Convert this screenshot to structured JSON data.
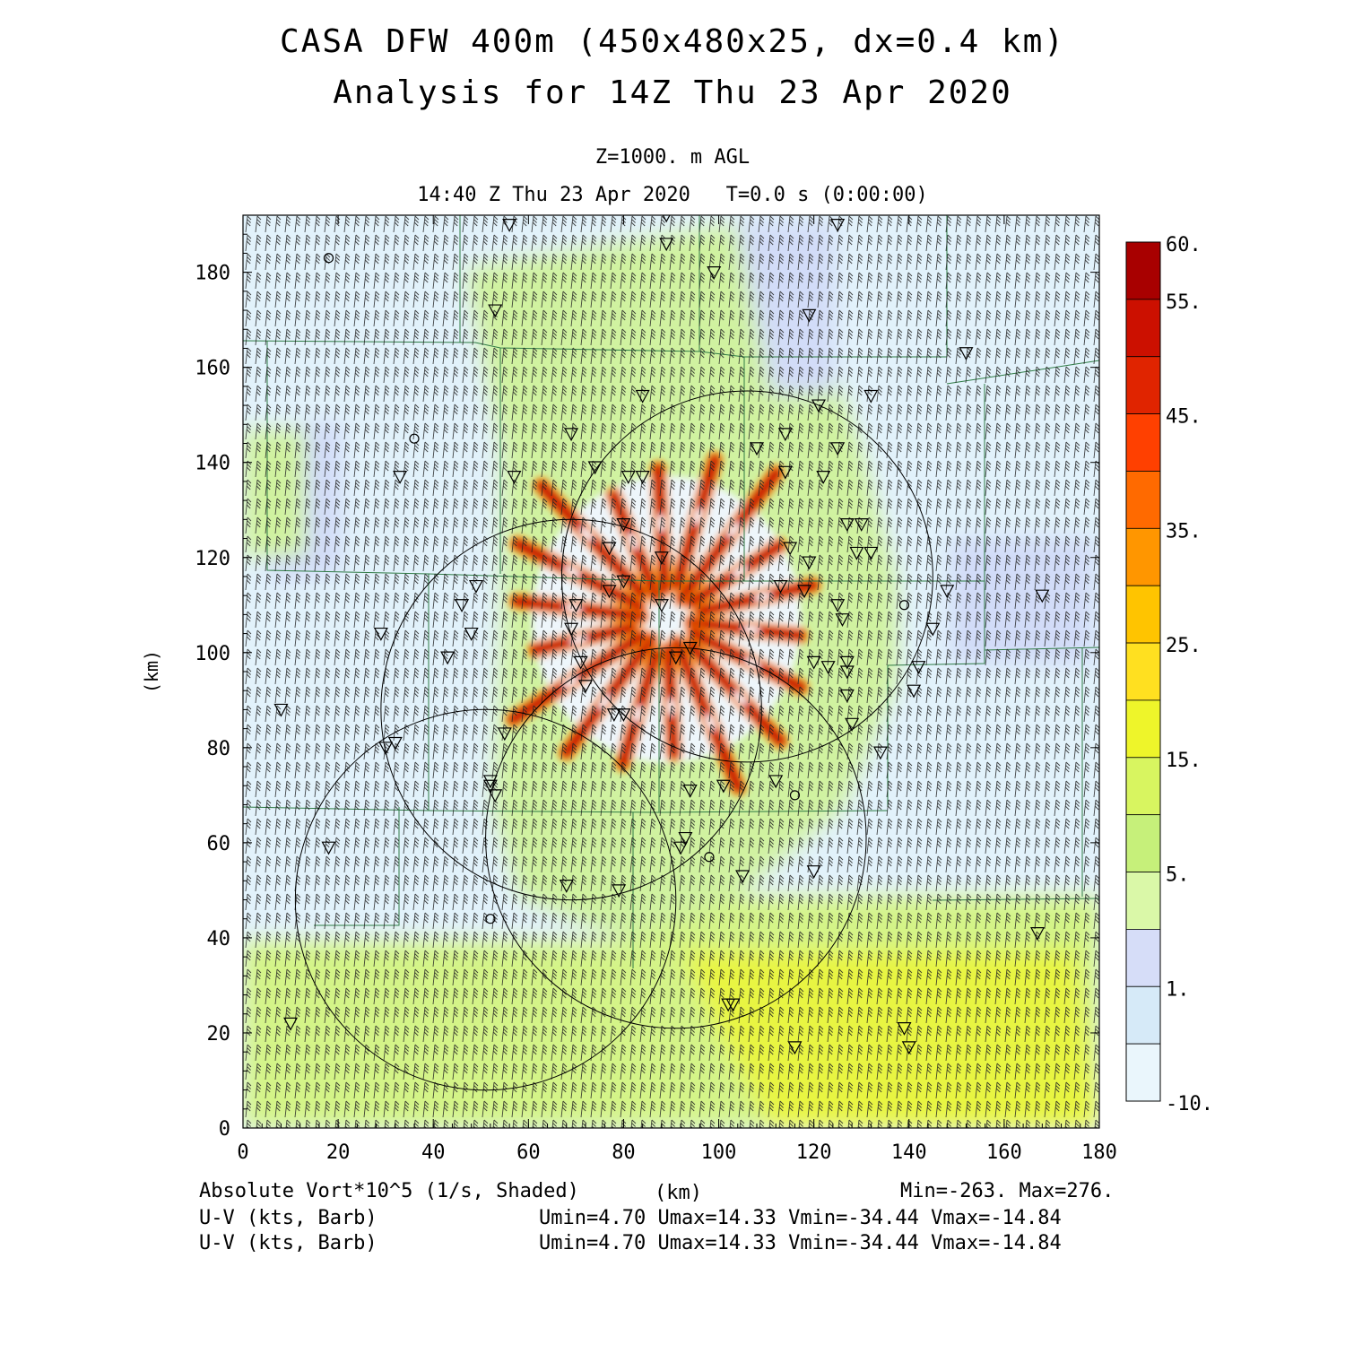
{
  "title": "CASA DFW 400m (450x480x25, dx=0.4 km)",
  "subtitle": "Analysis for 14Z Thu 23 Apr 2020",
  "level_label": "Z=1000. m AGL",
  "time_label": "14:40 Z Thu 23 Apr 2020   T=0.0 s (0:00:00)",
  "footer": {
    "field1": "Absolute Vort*10^5 (1/s, Shaded)",
    "xunit": "(km)",
    "minmax": "Min=-263. Max=276.",
    "field2": "U-V (kts, Barb)",
    "stats2": "Umin=4.70 Umax=14.33 Vmin=-34.44 Vmax=-14.84",
    "field3": "U-V (kts, Barb)",
    "stats3": "Umin=4.70 Umax=14.33 Vmin=-34.44 Vmax=-14.84"
  },
  "chart_data": {
    "type": "heatmap",
    "xlabel": "",
    "ylabel": "(km)",
    "xlim": [
      0,
      180
    ],
    "ylim": [
      0,
      192
    ],
    "xticks": [
      0,
      20,
      40,
      60,
      80,
      100,
      120,
      140,
      160,
      180
    ],
    "yticks": [
      0,
      20,
      40,
      60,
      80,
      100,
      120,
      140,
      160,
      180
    ],
    "colorbar": {
      "labels": [
        "60.",
        "55.",
        "45.",
        "35.",
        "25.",
        "15.",
        "5.",
        "1.",
        "-10."
      ],
      "bins": [
        {
          "color": "#a80000"
        },
        {
          "color": "#cc1000"
        },
        {
          "color": "#e02400"
        },
        {
          "color": "#ff4000"
        },
        {
          "color": "#ff6a00"
        },
        {
          "color": "#ff9600"
        },
        {
          "color": "#ffc400"
        },
        {
          "color": "#ffe020"
        },
        {
          "color": "#eef52a"
        },
        {
          "color": "#d8f560"
        },
        {
          "color": "#c6f07a"
        },
        {
          "color": "#daf8a8"
        },
        {
          "color": "#d6ddf8"
        },
        {
          "color": "#d6eaf8"
        },
        {
          "color": "#eaf6fc"
        }
      ]
    },
    "radar_rings": [
      {
        "center": [
          106,
          116
        ],
        "radius_km": 39
      },
      {
        "center": [
          69,
          88
        ],
        "radius_km": 40
      },
      {
        "center": [
          51,
          48
        ],
        "radius_km": 40
      },
      {
        "center": [
          91,
          61
        ],
        "radius_km": 40
      }
    ],
    "stations": {
      "triangles": [
        [
          89,
          192
        ],
        [
          89,
          186
        ],
        [
          56,
          190
        ],
        [
          125,
          190
        ],
        [
          99,
          180
        ],
        [
          53,
          172
        ],
        [
          119,
          171
        ],
        [
          152,
          163
        ],
        [
          84,
          154
        ],
        [
          121,
          152
        ],
        [
          132,
          154
        ],
        [
          69,
          146
        ],
        [
          57,
          137
        ],
        [
          81,
          137
        ],
        [
          84,
          137
        ],
        [
          108,
          143
        ],
        [
          114,
          146
        ],
        [
          125,
          143
        ],
        [
          74,
          139
        ],
        [
          114,
          138
        ],
        [
          122,
          137
        ],
        [
          33,
          137
        ],
        [
          80,
          127
        ],
        [
          127,
          127
        ],
        [
          130,
          127
        ],
        [
          77,
          122
        ],
        [
          88,
          120
        ],
        [
          115,
          122
        ],
        [
          129,
          121
        ],
        [
          132,
          121
        ],
        [
          119,
          119
        ],
        [
          80,
          115
        ],
        [
          77,
          113
        ],
        [
          113,
          114
        ],
        [
          118,
          113
        ],
        [
          70,
          110
        ],
        [
          125,
          110
        ],
        [
          88,
          110
        ],
        [
          126,
          107
        ],
        [
          148,
          113
        ],
        [
          29,
          104
        ],
        [
          48,
          104
        ],
        [
          46,
          110
        ],
        [
          49,
          114
        ],
        [
          145,
          105
        ],
        [
          168,
          112
        ],
        [
          43,
          99
        ],
        [
          69,
          105
        ],
        [
          91,
          99
        ],
        [
          94,
          101
        ],
        [
          71,
          98
        ],
        [
          120,
          98
        ],
        [
          123,
          97
        ],
        [
          127,
          98
        ],
        [
          127,
          96
        ],
        [
          142,
          97
        ],
        [
          127,
          91
        ],
        [
          72,
          93
        ],
        [
          8,
          88
        ],
        [
          78,
          87
        ],
        [
          80,
          87
        ],
        [
          141,
          92
        ],
        [
          30,
          80
        ],
        [
          32,
          81
        ],
        [
          55,
          83
        ],
        [
          128,
          85
        ],
        [
          134,
          79
        ],
        [
          52,
          73
        ],
        [
          53,
          70
        ],
        [
          52,
          72
        ],
        [
          94,
          71
        ],
        [
          101,
          72
        ],
        [
          112,
          73
        ],
        [
          18,
          59
        ],
        [
          92,
          59
        ],
        [
          93,
          61
        ],
        [
          68,
          51
        ],
        [
          79,
          50
        ],
        [
          105,
          53
        ],
        [
          120,
          54
        ],
        [
          167,
          41
        ],
        [
          10,
          22
        ],
        [
          102,
          26
        ],
        [
          103,
          26
        ],
        [
          139,
          21
        ],
        [
          140,
          17
        ],
        [
          116,
          17
        ]
      ],
      "circles": [
        [
          18,
          183
        ],
        [
          36,
          145
        ],
        [
          139,
          110
        ],
        [
          52,
          44
        ],
        [
          98,
          57
        ],
        [
          116,
          70
        ]
      ]
    }
  }
}
